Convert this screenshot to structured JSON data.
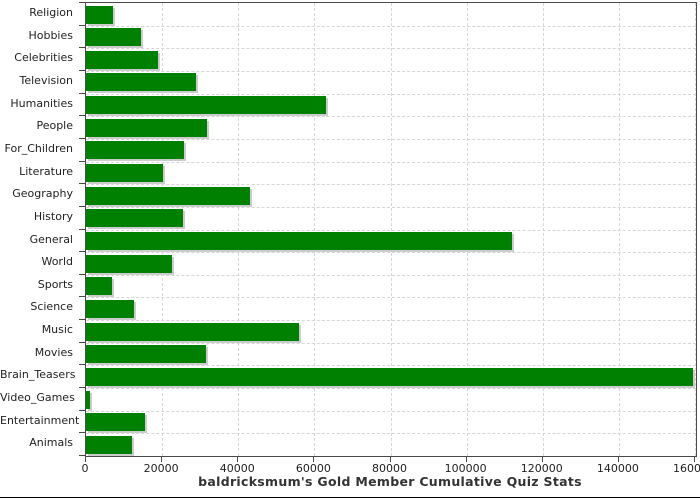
{
  "chart_data": {
    "type": "bar",
    "orientation": "horizontal",
    "title": "baldricksmum's Gold Member Cumulative Quiz Stats",
    "categories": [
      "Religion",
      "Hobbies",
      "Celebrities",
      "Television",
      "Humanities",
      "People",
      "For_Children",
      "Literature",
      "Geography",
      "History",
      "General",
      "World",
      "Sports",
      "Science",
      "Music",
      "Movies",
      "Brain_Teasers",
      "Video_Games",
      "Entertainment",
      "Animals"
    ],
    "values": [
      7200,
      14400,
      19000,
      29000,
      63000,
      31700,
      25800,
      20200,
      43200,
      25600,
      112000,
      22500,
      6700,
      12500,
      56000,
      31600,
      159400,
      1000,
      15400,
      12000
    ],
    "xlabel": "",
    "ylabel": "",
    "xlim": [
      0,
      160000
    ],
    "x_ticks": [
      0,
      20000,
      40000,
      60000,
      80000,
      100000,
      120000,
      140000,
      160000
    ],
    "x_tick_labels": [
      "0",
      "20000",
      "40000",
      "60000",
      "80000",
      "100000",
      "120000",
      "140000",
      "160000"
    ],
    "grid": "dashed",
    "legend": "none",
    "colors": {
      "bar": "#008000",
      "bar_shadow": "#cccccc",
      "gridline": "#d3d7d9",
      "axis": "#4a4a4a",
      "label_text": "#222222",
      "title_text": "#333333"
    }
  }
}
